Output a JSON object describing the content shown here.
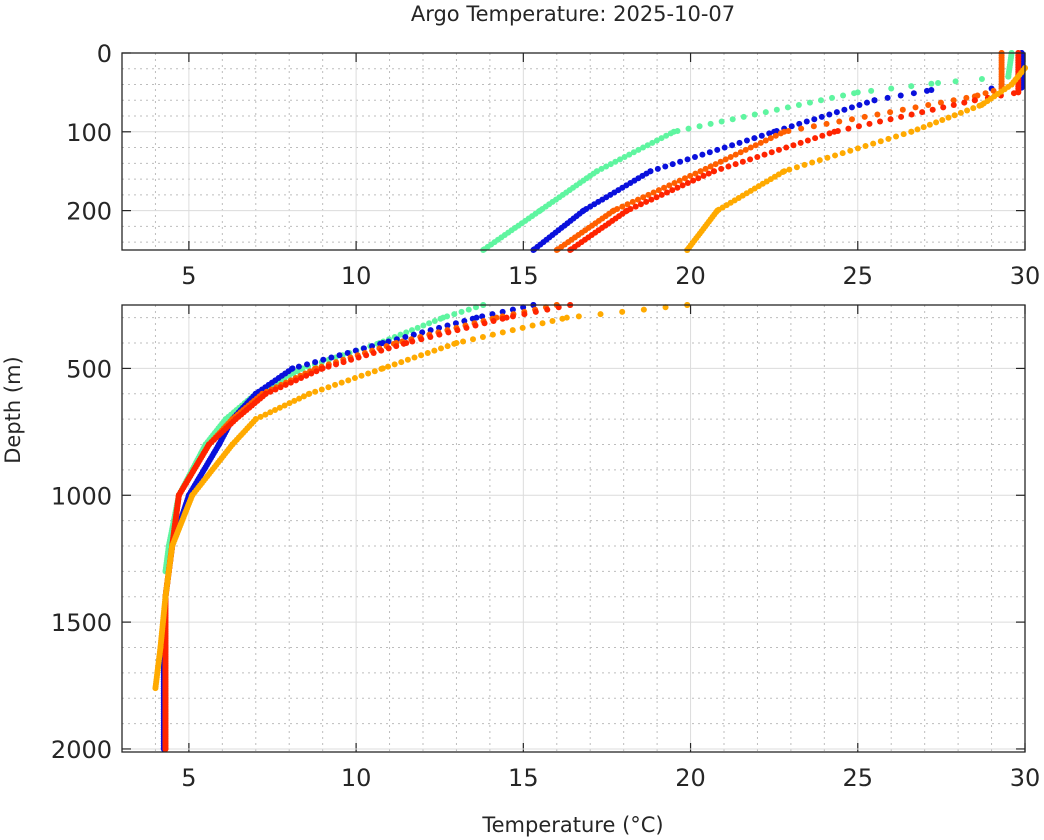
{
  "chart_data": {
    "type": "scatter",
    "title": "Argo Temperature: 2025-10-07",
    "xlabel": "Temperature (°C)",
    "ylabel": "Depth (m)",
    "grid": true,
    "legend": "none",
    "panels": [
      {
        "name": "upper",
        "xlim": [
          3,
          30
        ],
        "ylim": [
          0,
          250
        ],
        "y_reversed": true,
        "xticks": [
          5,
          10,
          15,
          20,
          25,
          30
        ],
        "xtick_labels": [
          "5",
          "10",
          "15",
          "20",
          "25",
          "30"
        ],
        "yticks": [
          0,
          100,
          200
        ],
        "ytick_labels": [
          "0",
          "100",
          "200"
        ]
      },
      {
        "name": "lower",
        "xlim": [
          3,
          30
        ],
        "ylim": [
          250,
          2012
        ],
        "y_reversed": true,
        "xticks": [
          5,
          10,
          15,
          20,
          25,
          30
        ],
        "xtick_labels": [
          "5",
          "10",
          "15",
          "20",
          "25",
          "30"
        ],
        "yticks": [
          500,
          1000,
          1500,
          2000
        ],
        "ytick_labels": [
          "500",
          "1000",
          "1500",
          "2000"
        ]
      }
    ],
    "series": [
      {
        "name": "profile-aquamarine",
        "color": "#5ff5a0",
        "depth": [
          0,
          30,
          38,
          50,
          100,
          150,
          200,
          250,
          300,
          400,
          500,
          600,
          700,
          800,
          1000,
          1200,
          1300
        ],
        "temp": [
          29.6,
          29.5,
          27.4,
          25.0,
          19.5,
          17.2,
          15.5,
          13.8,
          12.6,
          10.7,
          8.4,
          7.0,
          6.1,
          5.5,
          4.7,
          4.4,
          4.3
        ]
      },
      {
        "name": "profile-blue",
        "color": "#0a10dc",
        "depth": [
          0,
          44,
          47,
          60,
          100,
          150,
          200,
          250,
          300,
          400,
          500,
          600,
          700,
          800,
          1000,
          1200,
          1400,
          1600,
          1800,
          2000
        ],
        "temp": [
          29.9,
          29.9,
          27.2,
          25.5,
          22.5,
          18.8,
          16.8,
          15.3,
          13.6,
          10.8,
          8.1,
          7.0,
          6.3,
          5.9,
          5.0,
          4.5,
          4.3,
          4.25,
          4.25,
          4.25
        ]
      },
      {
        "name": "profile-dark-orange",
        "color": "#ff5f00",
        "depth": [
          0,
          45,
          55,
          100,
          150,
          200,
          250,
          300,
          400,
          500,
          600,
          700,
          800,
          1000,
          1200,
          1400,
          1600,
          1800,
          2000
        ],
        "temp": [
          29.3,
          29.3,
          28.5,
          22.8,
          20.3,
          17.7,
          16.0,
          14.2,
          11.2,
          8.8,
          7.2,
          6.3,
          5.6,
          4.7,
          4.5,
          4.3,
          4.3,
          4.3,
          4.3
        ]
      },
      {
        "name": "profile-red",
        "color": "#ff2400",
        "depth": [
          0,
          50,
          60,
          100,
          150,
          200,
          250,
          300,
          400,
          500,
          600,
          700,
          800,
          1000,
          1200,
          1400,
          1600,
          1800,
          2000
        ],
        "temp": [
          29.8,
          29.8,
          28.5,
          24.3,
          20.7,
          18.1,
          16.4,
          14.5,
          11.5,
          9.0,
          7.3,
          6.4,
          5.6,
          4.7,
          4.5,
          4.3,
          4.3,
          4.3,
          4.3
        ]
      },
      {
        "name": "profile-orange",
        "color": "#ffaa00",
        "depth": [
          19,
          40,
          66,
          100,
          150,
          200,
          250,
          300,
          400,
          500,
          600,
          700,
          800,
          1000,
          1200,
          1400,
          1600,
          1760
        ],
        "temp": [
          30.0,
          29.6,
          28.7,
          26.6,
          22.8,
          20.8,
          19.9,
          16.3,
          13.0,
          10.8,
          8.6,
          7.0,
          6.3,
          5.1,
          4.5,
          4.3,
          4.15,
          4.0
        ]
      }
    ]
  }
}
